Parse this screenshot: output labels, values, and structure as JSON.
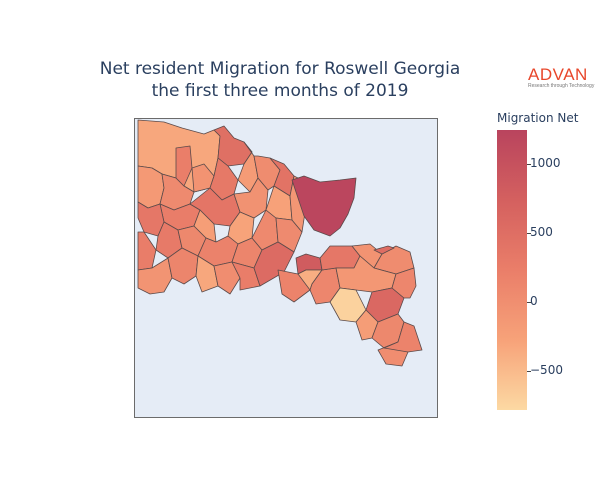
{
  "title": {
    "line1": "Net resident Migration for Roswell Georgia",
    "line2": "the first three months of 2019"
  },
  "logo": {
    "word": "ADVAN",
    "tagline": "Research through Technology"
  },
  "colorbar": {
    "title": "Migration Net",
    "min": -780,
    "max": 1250,
    "ticks": [
      {
        "value": 1000,
        "label": "1000"
      },
      {
        "value": 500,
        "label": "500"
      },
      {
        "value": 0,
        "label": "0"
      },
      {
        "value": -500,
        "label": "−500"
      }
    ],
    "colors": [
      "#fcd9a3",
      "#f7a279",
      "#ea7e69",
      "#d4605f",
      "#b9445e"
    ]
  },
  "chart_data": {
    "type": "choropleth",
    "colorscale_range": [
      -780,
      1250
    ],
    "regions": [
      {
        "value": -320
      },
      {
        "value": -150
      },
      {
        "value": 60
      },
      {
        "value": 240
      },
      {
        "value": -60
      },
      {
        "value": 480
      },
      {
        "value": 320
      },
      {
        "value": -180
      },
      {
        "value": 260
      },
      {
        "value": 380
      },
      {
        "value": -40
      },
      {
        "value": -280
      },
      {
        "value": 40
      },
      {
        "value": 420
      },
      {
        "value": 360
      },
      {
        "value": 300
      },
      {
        "value": 100
      },
      {
        "value": -220
      },
      {
        "value": 180
      },
      {
        "value": 140
      },
      {
        "value": 80
      },
      {
        "value": -260
      },
      {
        "value": 60
      },
      {
        "value": -100
      },
      {
        "value": 1220
      },
      {
        "value": 250
      },
      {
        "value": 820
      },
      {
        "value": -80
      },
      {
        "value": 140
      },
      {
        "value": -320
      },
      {
        "value": 20
      },
      {
        "value": 260
      },
      {
        "value": 560
      },
      {
        "value": 160
      },
      {
        "value": -380
      },
      {
        "value": 120
      },
      {
        "value": 360
      },
      {
        "value": -60
      },
      {
        "value": 40
      },
      {
        "value": -120
      },
      {
        "value": 520
      },
      {
        "value": -720
      },
      {
        "value": 600
      },
      {
        "value": 120
      },
      {
        "value": -200
      },
      {
        "value": 100
      },
      {
        "value": 20
      },
      {
        "value": 160
      }
    ]
  }
}
